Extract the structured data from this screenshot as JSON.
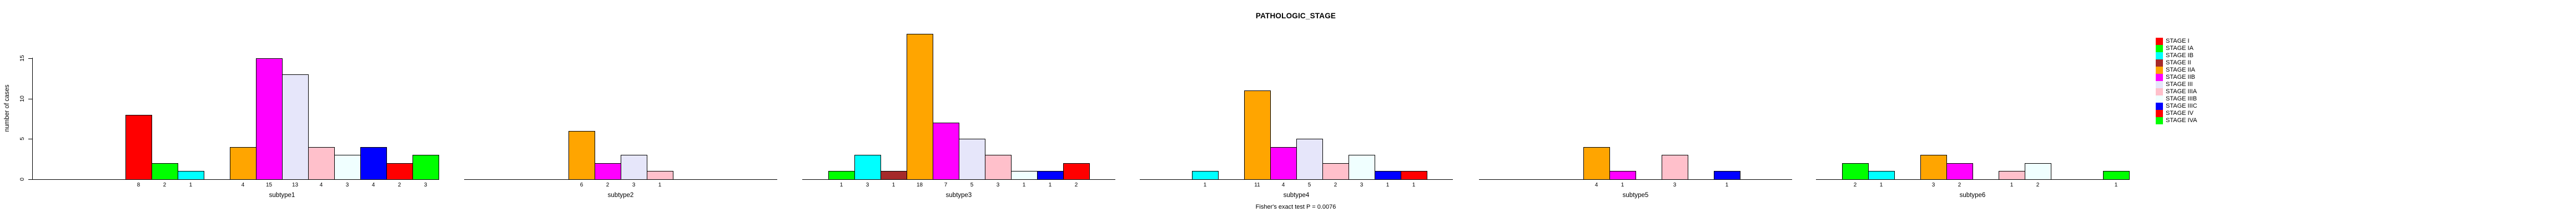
{
  "chart_data": {
    "type": "bar",
    "title": "PATHOLOGIC_STAGE",
    "ylabel": "number of cases",
    "footer": "Fisher's exact test P = 0.0076",
    "ylim": [
      0,
      15
    ],
    "yticks": [
      0,
      5,
      10,
      15
    ],
    "grid": "off",
    "legend_position": "right",
    "stages": [
      {
        "name": "STAGE I",
        "color": "#FF0000"
      },
      {
        "name": "STAGE IA",
        "color": "#00FF00"
      },
      {
        "name": "STAGE IB",
        "color": "#00FFFF"
      },
      {
        "name": "STAGE II",
        "color": "#A52A2A"
      },
      {
        "name": "STAGE IIA",
        "color": "#FFA500"
      },
      {
        "name": "STAGE IIB",
        "color": "#FF00FF"
      },
      {
        "name": "STAGE III",
        "color": "#E6E6FA"
      },
      {
        "name": "STAGE IIIA",
        "color": "#FFC0CB"
      },
      {
        "name": "STAGE IIIB",
        "color": "#F0FFFF"
      },
      {
        "name": "STAGE IIIC",
        "color": "#0000FF"
      },
      {
        "name": "STAGE IV",
        "color": "#FF0000"
      },
      {
        "name": "STAGE IVA",
        "color": "#00FF00"
      }
    ],
    "subplots": [
      {
        "label": "subtype1",
        "values": [
          8,
          2,
          1,
          0,
          4,
          15,
          13,
          4,
          3,
          4,
          2,
          3
        ]
      },
      {
        "label": "subtype2",
        "values": [
          0,
          0,
          0,
          0,
          6,
          2,
          3,
          1,
          0,
          0,
          0,
          0
        ]
      },
      {
        "label": "subtype3",
        "values": [
          0,
          1,
          3,
          1,
          18,
          7,
          5,
          3,
          1,
          1,
          2,
          0
        ]
      },
      {
        "label": "subtype4",
        "values": [
          0,
          0,
          1,
          0,
          11,
          4,
          5,
          2,
          3,
          1,
          1,
          0
        ]
      },
      {
        "label": "subtype5",
        "values": [
          0,
          0,
          0,
          0,
          4,
          1,
          0,
          3,
          0,
          1,
          0,
          0
        ]
      },
      {
        "label": "subtype6",
        "values": [
          0,
          2,
          1,
          0,
          3,
          2,
          0,
          1,
          2,
          0,
          0,
          1
        ]
      }
    ]
  }
}
